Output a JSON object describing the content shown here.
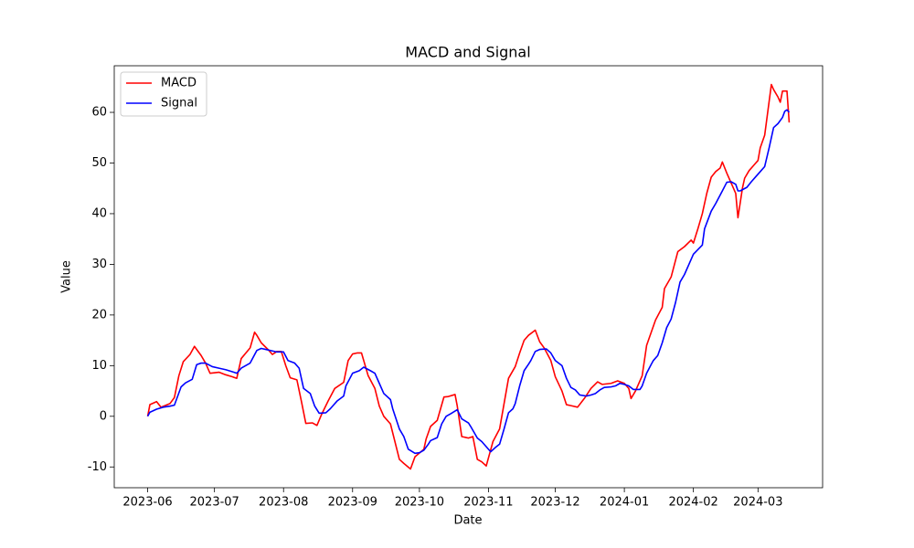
{
  "chart_data": {
    "type": "line",
    "title": "MACD and Signal",
    "xlabel": "Date",
    "ylabel": "Value",
    "xlim": [
      "2023-05-17",
      "2024-03-30"
    ],
    "ylim": [
      -14.1,
      69.2
    ],
    "xticks": [
      {
        "value": "2023-06-01",
        "label": "2023-06"
      },
      {
        "value": "2023-07-01",
        "label": "2023-07"
      },
      {
        "value": "2023-08-01",
        "label": "2023-08"
      },
      {
        "value": "2023-09-01",
        "label": "2023-09"
      },
      {
        "value": "2023-10-01",
        "label": "2023-10"
      },
      {
        "value": "2023-11-01",
        "label": "2023-11"
      },
      {
        "value": "2023-12-01",
        "label": "2023-12"
      },
      {
        "value": "2024-01-01",
        "label": "2024-01"
      },
      {
        "value": "2024-02-01",
        "label": "2024-02"
      },
      {
        "value": "2024-03-01",
        "label": "2024-03"
      }
    ],
    "yticks": [
      -10,
      0,
      10,
      20,
      30,
      40,
      50,
      60
    ],
    "grid": false,
    "legend": "upper left",
    "series": [
      {
        "name": "MACD",
        "color": "#ff0000",
        "x": [
          "2023-06-01",
          "2023-06-02",
          "2023-06-05",
          "2023-06-07",
          "2023-06-11",
          "2023-06-13",
          "2023-06-15",
          "2023-06-17",
          "2023-06-20",
          "2023-06-22",
          "2023-06-25",
          "2023-06-27",
          "2023-06-29",
          "2023-07-03",
          "2023-07-06",
          "2023-07-09",
          "2023-07-11",
          "2023-07-13",
          "2023-07-17",
          "2023-07-19",
          "2023-07-20",
          "2023-07-22",
          "2023-07-25",
          "2023-07-27",
          "2023-07-29",
          "2023-07-31",
          "2023-08-02",
          "2023-08-04",
          "2023-08-07",
          "2023-08-09",
          "2023-08-11",
          "2023-08-14",
          "2023-08-16",
          "2023-08-18",
          "2023-08-21",
          "2023-08-24",
          "2023-08-28",
          "2023-08-30",
          "2023-09-01",
          "2023-09-03",
          "2023-09-05",
          "2023-09-08",
          "2023-09-11",
          "2023-09-13",
          "2023-09-15",
          "2023-09-18",
          "2023-09-22",
          "2023-09-24",
          "2023-09-27",
          "2023-09-29",
          "2023-10-03",
          "2023-10-04",
          "2023-10-06",
          "2023-10-09",
          "2023-10-12",
          "2023-10-14",
          "2023-10-17",
          "2023-10-18",
          "2023-10-20",
          "2023-10-23",
          "2023-10-25",
          "2023-10-27",
          "2023-10-29",
          "2023-10-31",
          "2023-11-03",
          "2023-11-06",
          "2023-11-08",
          "2023-11-10",
          "2023-11-13",
          "2023-11-15",
          "2023-11-17",
          "2023-11-19",
          "2023-11-22",
          "2023-11-24",
          "2023-11-26",
          "2023-11-29",
          "2023-12-01",
          "2023-12-04",
          "2023-12-06",
          "2023-12-08",
          "2023-12-11",
          "2023-12-14",
          "2023-12-17",
          "2023-12-20",
          "2023-12-22",
          "2023-12-26",
          "2023-12-29",
          "2024-01-01",
          "2024-01-03",
          "2024-01-04",
          "2024-01-06",
          "2024-01-09",
          "2024-01-11",
          "2024-01-13",
          "2024-01-15",
          "2024-01-18",
          "2024-01-19",
          "2024-01-22",
          "2024-01-25",
          "2024-01-28",
          "2024-01-31",
          "2024-02-01",
          "2024-02-03",
          "2024-02-05",
          "2024-02-07",
          "2024-02-09",
          "2024-02-11",
          "2024-02-13",
          "2024-02-14",
          "2024-02-16",
          "2024-02-19",
          "2024-02-20",
          "2024-02-21",
          "2024-02-23",
          "2024-02-24",
          "2024-02-26",
          "2024-02-28",
          "2024-03-01",
          "2024-03-02",
          "2024-03-04",
          "2024-03-07",
          "2024-03-08",
          "2024-03-10",
          "2024-03-11",
          "2024-03-12",
          "2024-03-14",
          "2024-03-15"
        ],
        "values": [
          0,
          2.3,
          2.9,
          1.8,
          2.5,
          3.7,
          8,
          10.8,
          12.2,
          13.8,
          12,
          10.5,
          8.5,
          8.7,
          8.2,
          7.8,
          7.5,
          11.4,
          13.5,
          16.6,
          16,
          14.5,
          13.2,
          12.2,
          12.8,
          12.8,
          10,
          7.6,
          7.2,
          3,
          -1.4,
          -1.3,
          -1.8,
          0.3,
          3,
          5.5,
          6.7,
          11,
          12.3,
          12.5,
          12.5,
          8,
          5.5,
          2,
          0,
          -1.5,
          -8.5,
          -9.3,
          -10.4,
          -8,
          -6.5,
          -4.5,
          -2,
          -0.8,
          3.8,
          3.9,
          4.3,
          2,
          -4,
          -4.3,
          -4,
          -8.5,
          -9,
          -9.8,
          -5,
          -2.5,
          2.5,
          7.5,
          9.8,
          12.5,
          15,
          16,
          17,
          14.7,
          13.5,
          11,
          7.8,
          5,
          2.3,
          2.1,
          1.8,
          3.5,
          5.5,
          6.8,
          6.3,
          6.5,
          7,
          6.5,
          5.5,
          3.5,
          5,
          8,
          14,
          16.5,
          19,
          21.5,
          25.2,
          27.5,
          32.5,
          33.5,
          34.8,
          34.2,
          37,
          40,
          44,
          47.2,
          48.3,
          49,
          50.2,
          48,
          45,
          44,
          39.2,
          45,
          47,
          48.5,
          49.5,
          50.5,
          53,
          55.5,
          65.5,
          64.5,
          63,
          62,
          64.2,
          64.2,
          58
        ]
      },
      {
        "name": "Signal",
        "color": "#0000ff",
        "x": [
          "2023-06-01",
          "2023-06-02",
          "2023-06-05",
          "2023-06-08",
          "2023-06-11",
          "2023-06-13",
          "2023-06-16",
          "2023-06-18",
          "2023-06-21",
          "2023-06-23",
          "2023-06-25",
          "2023-06-27",
          "2023-06-30",
          "2023-07-03",
          "2023-07-06",
          "2023-07-09",
          "2023-07-11",
          "2023-07-13",
          "2023-07-17",
          "2023-07-20",
          "2023-07-22",
          "2023-07-24",
          "2023-07-27",
          "2023-07-29",
          "2023-08-01",
          "2023-08-03",
          "2023-08-06",
          "2023-08-08",
          "2023-08-10",
          "2023-08-13",
          "2023-08-15",
          "2023-08-17",
          "2023-08-20",
          "2023-08-22",
          "2023-08-25",
          "2023-08-28",
          "2023-08-29",
          "2023-09-01",
          "2023-09-04",
          "2023-09-06",
          "2023-09-09",
          "2023-09-11",
          "2023-09-13",
          "2023-09-15",
          "2023-09-18",
          "2023-09-19",
          "2023-09-22",
          "2023-09-24",
          "2023-09-26",
          "2023-09-29",
          "2023-10-01",
          "2023-10-03",
          "2023-10-05",
          "2023-10-06",
          "2023-10-09",
          "2023-10-11",
          "2023-10-13",
          "2023-10-15",
          "2023-10-18",
          "2023-10-20",
          "2023-10-23",
          "2023-10-24",
          "2023-10-27",
          "2023-10-29",
          "2023-11-01",
          "2023-11-02",
          "2023-11-04",
          "2023-11-06",
          "2023-11-08",
          "2023-11-10",
          "2023-11-12",
          "2023-11-13",
          "2023-11-15",
          "2023-11-17",
          "2023-11-19",
          "2023-11-20",
          "2023-11-22",
          "2023-11-24",
          "2023-11-27",
          "2023-11-29",
          "2023-12-01",
          "2023-12-04",
          "2023-12-06",
          "2023-12-08",
          "2023-12-10",
          "2023-12-12",
          "2023-12-15",
          "2023-12-17",
          "2023-12-19",
          "2023-12-21",
          "2023-12-23",
          "2023-12-26",
          "2023-12-28",
          "2023-12-30",
          "2024-01-01",
          "2024-01-03",
          "2024-01-05",
          "2024-01-08",
          "2024-01-09",
          "2024-01-11",
          "2024-01-13",
          "2024-01-14",
          "2024-01-16",
          "2024-01-18",
          "2024-01-20",
          "2024-01-22",
          "2024-01-24",
          "2024-01-26",
          "2024-01-28",
          "2024-01-30",
          "2024-02-01",
          "2024-02-05",
          "2024-02-06",
          "2024-02-09",
          "2024-02-11",
          "2024-02-14",
          "2024-02-16",
          "2024-02-18",
          "2024-02-20",
          "2024-02-21",
          "2024-02-22",
          "2024-02-25",
          "2024-02-27",
          "2024-02-29",
          "2024-03-02",
          "2024-03-04",
          "2024-03-06",
          "2024-03-08",
          "2024-03-10",
          "2024-03-12",
          "2024-03-13",
          "2024-03-14",
          "2024-03-15"
        ],
        "values": [
          0,
          0.8,
          1.4,
          1.8,
          2,
          2.2,
          5.8,
          6.6,
          7.3,
          10.2,
          10.5,
          10.5,
          9.8,
          9.5,
          9.2,
          8.8,
          8.5,
          9.5,
          10.5,
          13,
          13.4,
          13.2,
          12.9,
          12.7,
          12.7,
          11,
          10.5,
          9.5,
          5.5,
          4.5,
          2,
          0.6,
          0.7,
          1.5,
          3,
          4,
          6,
          8.5,
          9,
          9.7,
          9,
          8.5,
          6.5,
          4.5,
          3.3,
          1.5,
          -2.5,
          -4,
          -6.5,
          -7.3,
          -7.2,
          -6.7,
          -5.5,
          -4.8,
          -4.2,
          -1.5,
          0,
          0.5,
          1.3,
          -0.5,
          -1.3,
          -2,
          -4.3,
          -5,
          -6.5,
          -7,
          -6.2,
          -5.5,
          -2.5,
          0.7,
          1.5,
          2.5,
          6,
          9,
          10.3,
          11,
          12.8,
          13.2,
          13.3,
          12.5,
          11,
          10,
          7.5,
          5.7,
          5.2,
          4.2,
          4,
          4.2,
          4.5,
          5.2,
          5.7,
          5.8,
          6,
          6.5,
          6.3,
          6,
          5.3,
          5.3,
          6,
          8.5,
          10.2,
          11,
          12,
          14.5,
          17.5,
          19.2,
          22.5,
          26.5,
          28,
          30,
          32,
          33.8,
          37,
          40.5,
          42,
          44.5,
          46.2,
          46.3,
          45.8,
          44.5,
          44.5,
          45.2,
          46.3,
          47.3,
          48.3,
          49.3,
          53,
          57,
          57.8,
          59,
          60.2,
          60.5,
          60
        ]
      }
    ]
  }
}
